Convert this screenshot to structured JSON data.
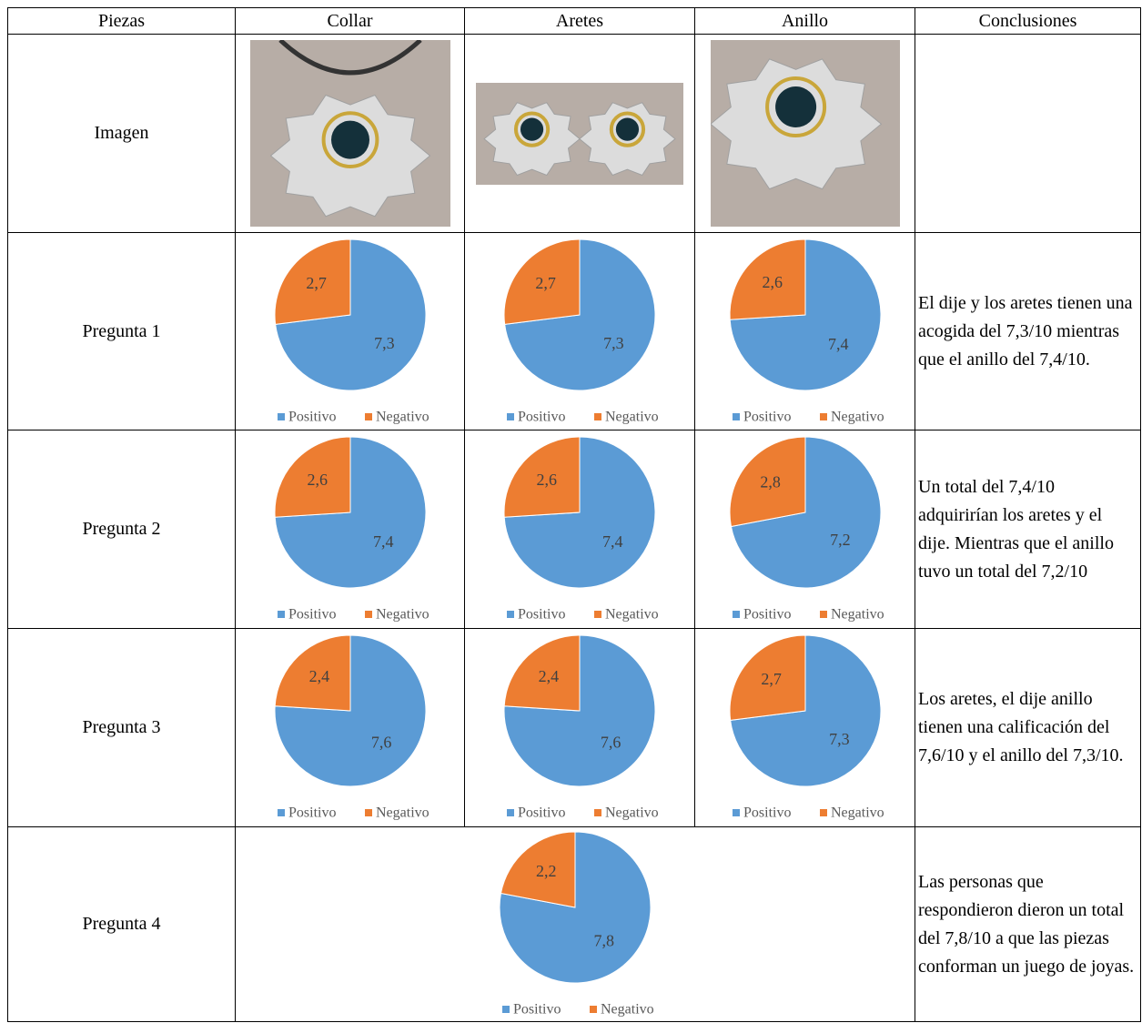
{
  "table": {
    "header": [
      "Piezas",
      "Collar",
      "Aretes",
      "Anillo",
      "Conclusiones"
    ],
    "rows": [
      {
        "label": "Imagen"
      },
      {
        "label": "Pregunta 1",
        "charts": [
          {
            "type": "pie",
            "categories": [
              "Positivo",
              "Negativo"
            ],
            "values": [
              7.3,
              2.7
            ],
            "value_labels": [
              "7,3",
              "2,7"
            ],
            "colors": [
              "#5b9bd5",
              "#ed7d31"
            ]
          },
          {
            "type": "pie",
            "categories": [
              "Positivo",
              "Negativo"
            ],
            "values": [
              7.3,
              2.7
            ],
            "value_labels": [
              "7,3",
              "2,7"
            ],
            "colors": [
              "#5b9bd5",
              "#ed7d31"
            ]
          },
          {
            "type": "pie",
            "categories": [
              "Positivo",
              "Negativo"
            ],
            "values": [
              7.4,
              2.6
            ],
            "value_labels": [
              "7,4",
              "2,6"
            ],
            "colors": [
              "#5b9bd5",
              "#ed7d31"
            ]
          }
        ],
        "conclusion": "El dije y los aretes tienen una acogida del 7,3/10 mientras que el anillo del 7,4/10."
      },
      {
        "label": "Pregunta 2",
        "charts": [
          {
            "type": "pie",
            "categories": [
              "Positivo",
              "Negativo"
            ],
            "values": [
              7.4,
              2.6
            ],
            "value_labels": [
              "7,4",
              "2,6"
            ],
            "colors": [
              "#5b9bd5",
              "#ed7d31"
            ]
          },
          {
            "type": "pie",
            "categories": [
              "Positivo",
              "Negativo"
            ],
            "values": [
              7.4,
              2.6
            ],
            "value_labels": [
              "7,4",
              "2,6"
            ],
            "colors": [
              "#5b9bd5",
              "#ed7d31"
            ]
          },
          {
            "type": "pie",
            "categories": [
              "Positivo",
              "Negativo"
            ],
            "values": [
              7.2,
              2.8
            ],
            "value_labels": [
              "7,2",
              "2,8"
            ],
            "colors": [
              "#5b9bd5",
              "#ed7d31"
            ]
          }
        ],
        "conclusion": "Un total del 7,4/10 adquirirían los aretes y el dije. Mientras que el anillo tuvo un total del 7,2/10"
      },
      {
        "label": "Pregunta 3",
        "charts": [
          {
            "type": "pie",
            "categories": [
              "Positivo",
              "Negativo"
            ],
            "values": [
              7.6,
              2.4
            ],
            "value_labels": [
              "7,6",
              "2,4"
            ],
            "colors": [
              "#5b9bd5",
              "#ed7d31"
            ]
          },
          {
            "type": "pie",
            "categories": [
              "Positivo",
              "Negativo"
            ],
            "values": [
              7.6,
              2.4
            ],
            "value_labels": [
              "7,6",
              "2,4"
            ],
            "colors": [
              "#5b9bd5",
              "#ed7d31"
            ]
          },
          {
            "type": "pie",
            "categories": [
              "Positivo",
              "Negativo"
            ],
            "values": [
              7.3,
              2.7
            ],
            "value_labels": [
              "7,3",
              "2,7"
            ],
            "colors": [
              "#5b9bd5",
              "#ed7d31"
            ]
          }
        ],
        "conclusion": "Los aretes, el dije anillo tienen una calificación del 7,6/10 y el anillo del 7,3/10."
      },
      {
        "label": "Pregunta 4",
        "charts": [
          {
            "type": "pie",
            "categories": [
              "Positivo",
              "Negativo"
            ],
            "values": [
              7.8,
              2.2
            ],
            "value_labels": [
              "7,8",
              "2,2"
            ],
            "colors": [
              "#5b9bd5",
              "#ed7d31"
            ]
          }
        ],
        "conclusion": "Las personas que respondieron dieron un total del 7,8/10 a que las piezas conforman un juego de joyas."
      }
    ]
  }
}
